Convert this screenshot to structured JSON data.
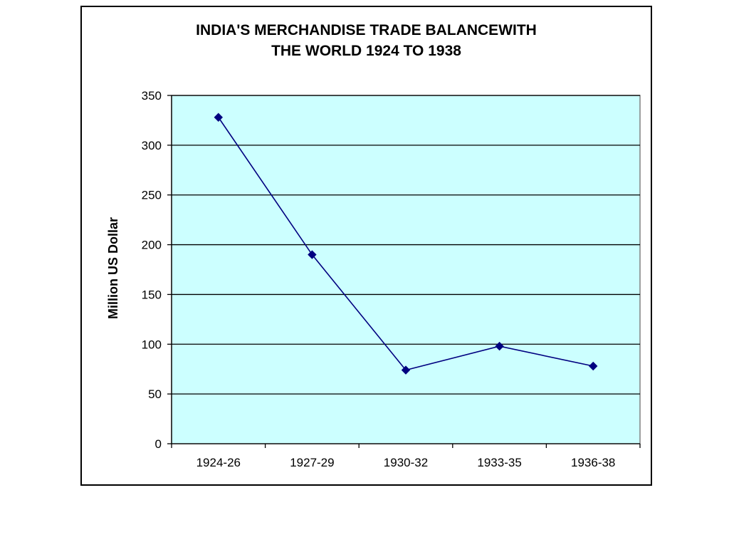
{
  "chart_data": {
    "type": "line",
    "title_line1": "INDIA'S MERCHANDISE TRADE BALANCEWITH",
    "title_line2": "THE WORLD 1924 TO 1938",
    "xlabel": "",
    "ylabel": "Million US Dollar",
    "categories": [
      "1924-26",
      "1927-29",
      "1930-32",
      "1933-35",
      "1936-38"
    ],
    "series": [
      {
        "values": [
          328,
          190,
          74,
          98,
          78
        ]
      }
    ],
    "ylim": [
      0,
      350
    ],
    "yticks": [
      0,
      50,
      100,
      150,
      200,
      250,
      300,
      350
    ],
    "grid": "horizontal",
    "legend": "none",
    "colors": {
      "plot_background": "#ccffff",
      "line": "#000080",
      "marker": "#000080",
      "gridline": "#000000"
    }
  }
}
